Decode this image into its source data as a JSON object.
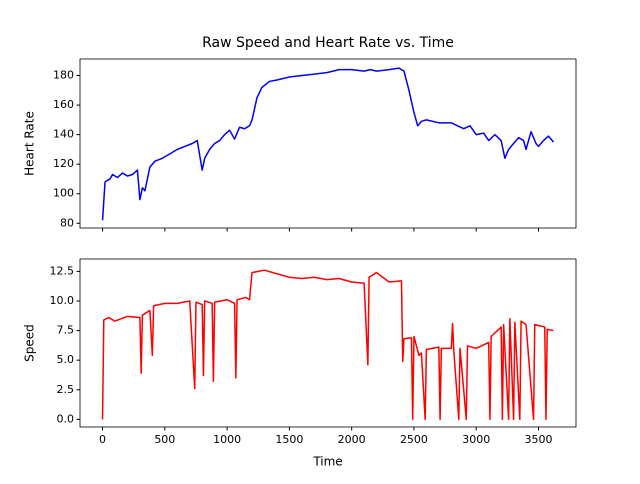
{
  "chart_data": [
    {
      "type": "line",
      "title": "Raw Speed and Heart Rate vs. Time",
      "ylabel": "Heart Rate",
      "x": [
        0,
        20,
        60,
        80,
        120,
        160,
        200,
        240,
        280,
        300,
        320,
        340,
        380,
        420,
        480,
        540,
        600,
        660,
        720,
        760,
        800,
        820,
        860,
        900,
        940,
        980,
        1020,
        1060,
        1100,
        1140,
        1180,
        1200,
        1240,
        1280,
        1340,
        1400,
        1500,
        1600,
        1700,
        1800,
        1900,
        2000,
        2100,
        2150,
        2200,
        2300,
        2380,
        2420,
        2460,
        2500,
        2530,
        2560,
        2600,
        2700,
        2800,
        2850,
        2900,
        2950,
        3000,
        3060,
        3100,
        3150,
        3200,
        3230,
        3260,
        3300,
        3340,
        3380,
        3400,
        3440,
        3480,
        3500,
        3540,
        3580,
        3620
      ],
      "series": [
        {
          "name": "Heart Rate",
          "color": "#0000ff",
          "values": [
            82,
            108,
            110,
            113,
            111,
            114,
            112,
            113,
            116,
            96,
            104,
            102,
            118,
            122,
            124,
            127,
            130,
            132,
            134,
            136,
            116,
            124,
            130,
            134,
            136,
            140,
            143,
            137,
            145,
            144,
            146,
            150,
            165,
            172,
            176,
            177,
            179,
            180,
            181,
            182,
            184,
            184,
            183,
            184,
            183,
            184,
            185,
            183,
            170,
            155,
            146,
            149,
            150,
            148,
            148,
            146,
            144,
            146,
            140,
            141,
            136,
            140,
            136,
            124,
            130,
            134,
            138,
            136,
            130,
            142,
            134,
            132,
            136,
            139,
            135
          ]
        }
      ],
      "xlim": [
        -181,
        3801
      ],
      "xticks": [
        0,
        500,
        1000,
        1500,
        2000,
        2500,
        3000,
        3500
      ],
      "ylim": [
        76.8,
        191.2
      ],
      "yticks": [
        80,
        100,
        120,
        140,
        160,
        180
      ]
    },
    {
      "type": "line",
      "ylabel": "Speed",
      "xlabel": "Time",
      "x": [
        0,
        10,
        50,
        100,
        200,
        300,
        310,
        320,
        380,
        400,
        410,
        500,
        600,
        700,
        740,
        750,
        800,
        810,
        820,
        880,
        890,
        900,
        1000,
        1060,
        1070,
        1080,
        1150,
        1180,
        1200,
        1300,
        1400,
        1500,
        1600,
        1700,
        1800,
        1900,
        2000,
        2100,
        2130,
        2140,
        2200,
        2300,
        2400,
        2410,
        2420,
        2480,
        2490,
        2500,
        2540,
        2560,
        2590,
        2600,
        2700,
        2710,
        2720,
        2800,
        2810,
        2820,
        2860,
        2870,
        2920,
        2930,
        3000,
        3100,
        3110,
        3120,
        3200,
        3210,
        3220,
        3260,
        3270,
        3300,
        3310,
        3350,
        3360,
        3400,
        3460,
        3470,
        3550,
        3560,
        3570,
        3620
      ],
      "series": [
        {
          "name": "Speed",
          "color": "#ff0000",
          "values": [
            0,
            8.4,
            8.6,
            8.3,
            8.7,
            8.6,
            3.9,
            8.8,
            9.2,
            5.4,
            9.6,
            9.8,
            9.8,
            10.0,
            2.6,
            9.9,
            9.7,
            3.7,
            10.0,
            9.8,
            3.2,
            9.9,
            10.1,
            9.8,
            3.5,
            10.1,
            10.3,
            10.1,
            12.4,
            12.6,
            12.3,
            12.0,
            11.9,
            12.0,
            11.8,
            11.9,
            11.6,
            11.5,
            4.6,
            12.0,
            12.4,
            11.6,
            11.7,
            4.9,
            6.8,
            6.9,
            0,
            7.0,
            5.4,
            5.6,
            0,
            5.9,
            6.1,
            0,
            6.0,
            6.0,
            8.1,
            5.8,
            0,
            6.0,
            0,
            6.2,
            6.0,
            6.5,
            0,
            7.0,
            7.8,
            0,
            8.0,
            0,
            8.5,
            0,
            8.2,
            0,
            8.3,
            8.0,
            0,
            8.0,
            7.8,
            0,
            7.6,
            7.5
          ]
        }
      ],
      "xlim": [
        -181,
        3801
      ],
      "xticks": [
        0,
        500,
        1000,
        1500,
        2000,
        2500,
        3000,
        3500
      ],
      "ylim": [
        -0.645,
        13.545
      ],
      "yticks": [
        {
          "value": 0,
          "label": "0.0"
        },
        2.5,
        {
          "value": 5,
          "label": "5.0"
        },
        7.5,
        {
          "value": 10,
          "label": "10.0"
        },
        12.5
      ]
    }
  ]
}
